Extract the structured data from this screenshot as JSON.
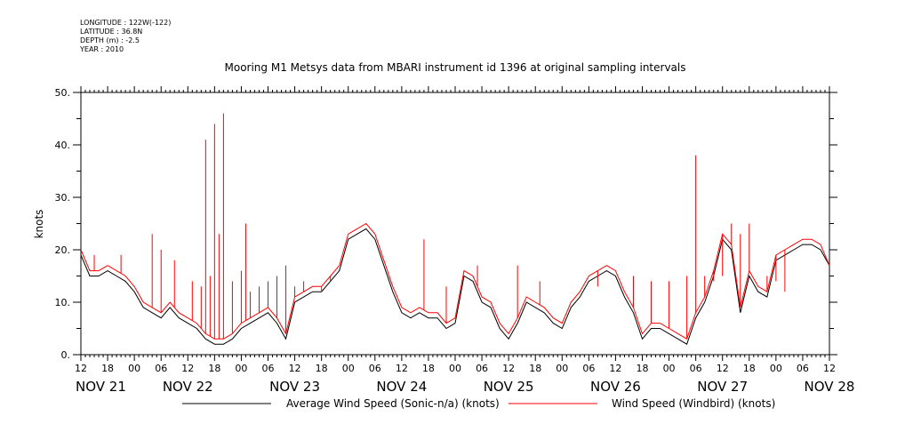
{
  "header": {
    "meta_lines": [
      "LONGITUDE : 122W(-122)",
      "LATITUDE : 36.8N",
      "DEPTH (m) : -2.5",
      "YEAR : 2010"
    ]
  },
  "chart_data": {
    "type": "line",
    "title": "Mooring M1 Metsys data from MBARI instrument id 1396 at original sampling intervals",
    "ylabel": "knots",
    "xlabel": "",
    "ylim": [
      0,
      50
    ],
    "yticks": [
      0,
      10,
      20,
      30,
      40,
      50
    ],
    "ytick_labels": [
      "0.",
      "10.",
      "20.",
      "30.",
      "40.",
      "50."
    ],
    "xlim_hours": [
      12,
      180
    ],
    "x_unit": "hours since NOV 21 00:00 (2010)",
    "hour_ticks": [
      "12",
      "18",
      "00",
      "06",
      "12",
      "18",
      "00",
      "06",
      "12",
      "18",
      "00",
      "06",
      "12",
      "18",
      "00",
      "06",
      "12",
      "18",
      "00",
      "06",
      "12",
      "18",
      "00",
      "06",
      "12",
      "18",
      "00",
      "06",
      "12"
    ],
    "day_labels": [
      "NOV 21",
      "NOV 22",
      "NOV 23",
      "NOV 24",
      "NOV 25",
      "NOV 26",
      "NOV 27",
      "NOV 28"
    ],
    "grid": false,
    "legend_position": "bottom",
    "series": [
      {
        "name": "Average Wind Speed (Sonic-n/a) (knots)",
        "color": "#000000",
        "x": [
          12,
          14,
          16,
          18,
          20,
          22,
          24,
          26,
          28,
          30,
          32,
          34,
          36,
          38,
          40,
          42,
          44,
          46,
          48,
          50,
          52,
          54,
          56,
          58,
          60,
          62,
          64,
          66,
          68,
          70,
          72,
          74,
          76,
          78,
          80,
          82,
          84,
          86,
          88,
          90,
          92,
          94,
          96,
          98,
          100,
          102,
          104,
          106,
          108,
          110,
          112,
          114,
          116,
          118,
          120,
          122,
          124,
          126,
          128,
          130,
          132,
          134,
          136,
          138,
          140,
          142,
          144,
          146,
          148,
          150,
          152,
          154,
          156,
          158,
          160,
          162,
          164,
          166,
          168,
          170,
          172,
          174,
          176,
          178,
          180
        ],
        "y": [
          19,
          15,
          15,
          16,
          15,
          14,
          12,
          9,
          8,
          7,
          9,
          7,
          6,
          5,
          3,
          2,
          2,
          3,
          5,
          6,
          7,
          8,
          6,
          3,
          10,
          11,
          12,
          12,
          14,
          16,
          22,
          23,
          24,
          22,
          17,
          12,
          8,
          7,
          8,
          7,
          7,
          5,
          6,
          15,
          14,
          10,
          9,
          5,
          3,
          6,
          10,
          9,
          8,
          6,
          5,
          9,
          11,
          14,
          15,
          16,
          15,
          11,
          8,
          3,
          5,
          5,
          4,
          3,
          2,
          7,
          10,
          15,
          22,
          20,
          8,
          15,
          12,
          11,
          18,
          19,
          20,
          21,
          21,
          20,
          17
        ]
      },
      {
        "name": "Wind Speed (Windbird) (knots)",
        "color": "#ff0000",
        "x": [
          12,
          14,
          16,
          18,
          20,
          22,
          24,
          26,
          28,
          30,
          32,
          34,
          36,
          38,
          40,
          42,
          44,
          46,
          48,
          50,
          52,
          54,
          56,
          58,
          60,
          62,
          64,
          66,
          68,
          70,
          72,
          74,
          76,
          78,
          80,
          82,
          84,
          86,
          88,
          90,
          92,
          94,
          96,
          98,
          100,
          102,
          104,
          106,
          108,
          110,
          112,
          114,
          116,
          118,
          120,
          122,
          124,
          126,
          128,
          130,
          132,
          134,
          136,
          138,
          140,
          142,
          144,
          146,
          148,
          150,
          152,
          154,
          156,
          158,
          160,
          162,
          164,
          166,
          168,
          170,
          172,
          174,
          176,
          178,
          180
        ],
        "y": [
          20,
          16,
          16,
          17,
          16,
          15,
          13,
          10,
          9,
          8,
          10,
          8,
          7,
          6,
          4,
          3,
          3,
          4,
          6,
          7,
          8,
          9,
          7,
          4,
          11,
          12,
          13,
          13,
          15,
          17,
          23,
          24,
          25,
          23,
          18,
          13,
          9,
          8,
          9,
          8,
          8,
          6,
          7,
          16,
          15,
          11,
          10,
          6,
          4,
          7,
          11,
          10,
          9,
          7,
          6,
          10,
          12,
          15,
          16,
          17,
          16,
          12,
          9,
          4,
          6,
          6,
          5,
          4,
          3,
          8,
          11,
          16,
          23,
          21,
          9,
          16,
          13,
          12,
          19,
          20,
          21,
          22,
          22,
          21,
          17
        ]
      }
    ],
    "spikes": {
      "series": "Wind Speed (Windbird) (knots)",
      "x": [
        15,
        21,
        28,
        30,
        33,
        37,
        39,
        40,
        41,
        42,
        43,
        44,
        46,
        48,
        49,
        50,
        52,
        54,
        56,
        58,
        60,
        62,
        66,
        68,
        70,
        89,
        94,
        101,
        110,
        115,
        128,
        136,
        140,
        144,
        148,
        150,
        152,
        154,
        156,
        158,
        160,
        162,
        164,
        166,
        168,
        170
      ],
      "y": [
        19,
        19,
        23,
        20,
        18,
        14,
        13,
        41,
        15,
        44,
        23,
        46,
        14,
        16,
        25,
        12,
        13,
        14,
        15,
        17,
        13,
        14,
        12,
        14,
        17,
        22,
        13,
        17,
        17,
        14,
        13,
        15,
        14,
        14,
        15,
        38,
        15,
        14,
        15,
        25,
        23,
        25,
        13,
        15,
        14,
        12
      ]
    }
  }
}
